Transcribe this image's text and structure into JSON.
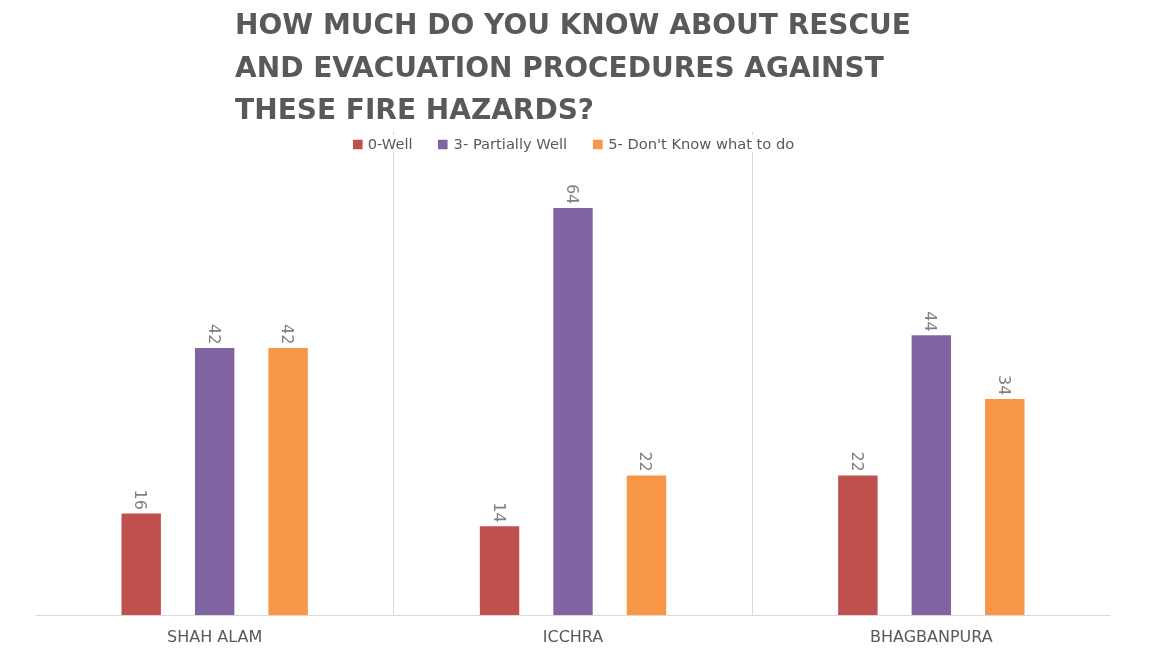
{
  "chart_data": {
    "type": "bar",
    "title": "HOW MUCH DO YOU KNOW ABOUT RESCUE AND EVACUATION PROCEDURES AGAINST THESE FIRE HAZARDS?",
    "categories": [
      "SHAH ALAM",
      "ICCHRA",
      "BHAGBANPURA"
    ],
    "series": [
      {
        "name": "0-Well",
        "color": "#c0504d",
        "values": [
          16,
          14,
          22
        ]
      },
      {
        "name": "3- Partially Well",
        "color": "#8064a2",
        "values": [
          42,
          64,
          44
        ]
      },
      {
        "name": "5- Don't Know what to do",
        "color": "#f79646",
        "values": [
          42,
          22,
          34
        ]
      }
    ],
    "ylim": [
      0,
      76
    ],
    "data_labels": true,
    "grid": "x",
    "legend": "top",
    "tick_labels": "x"
  }
}
